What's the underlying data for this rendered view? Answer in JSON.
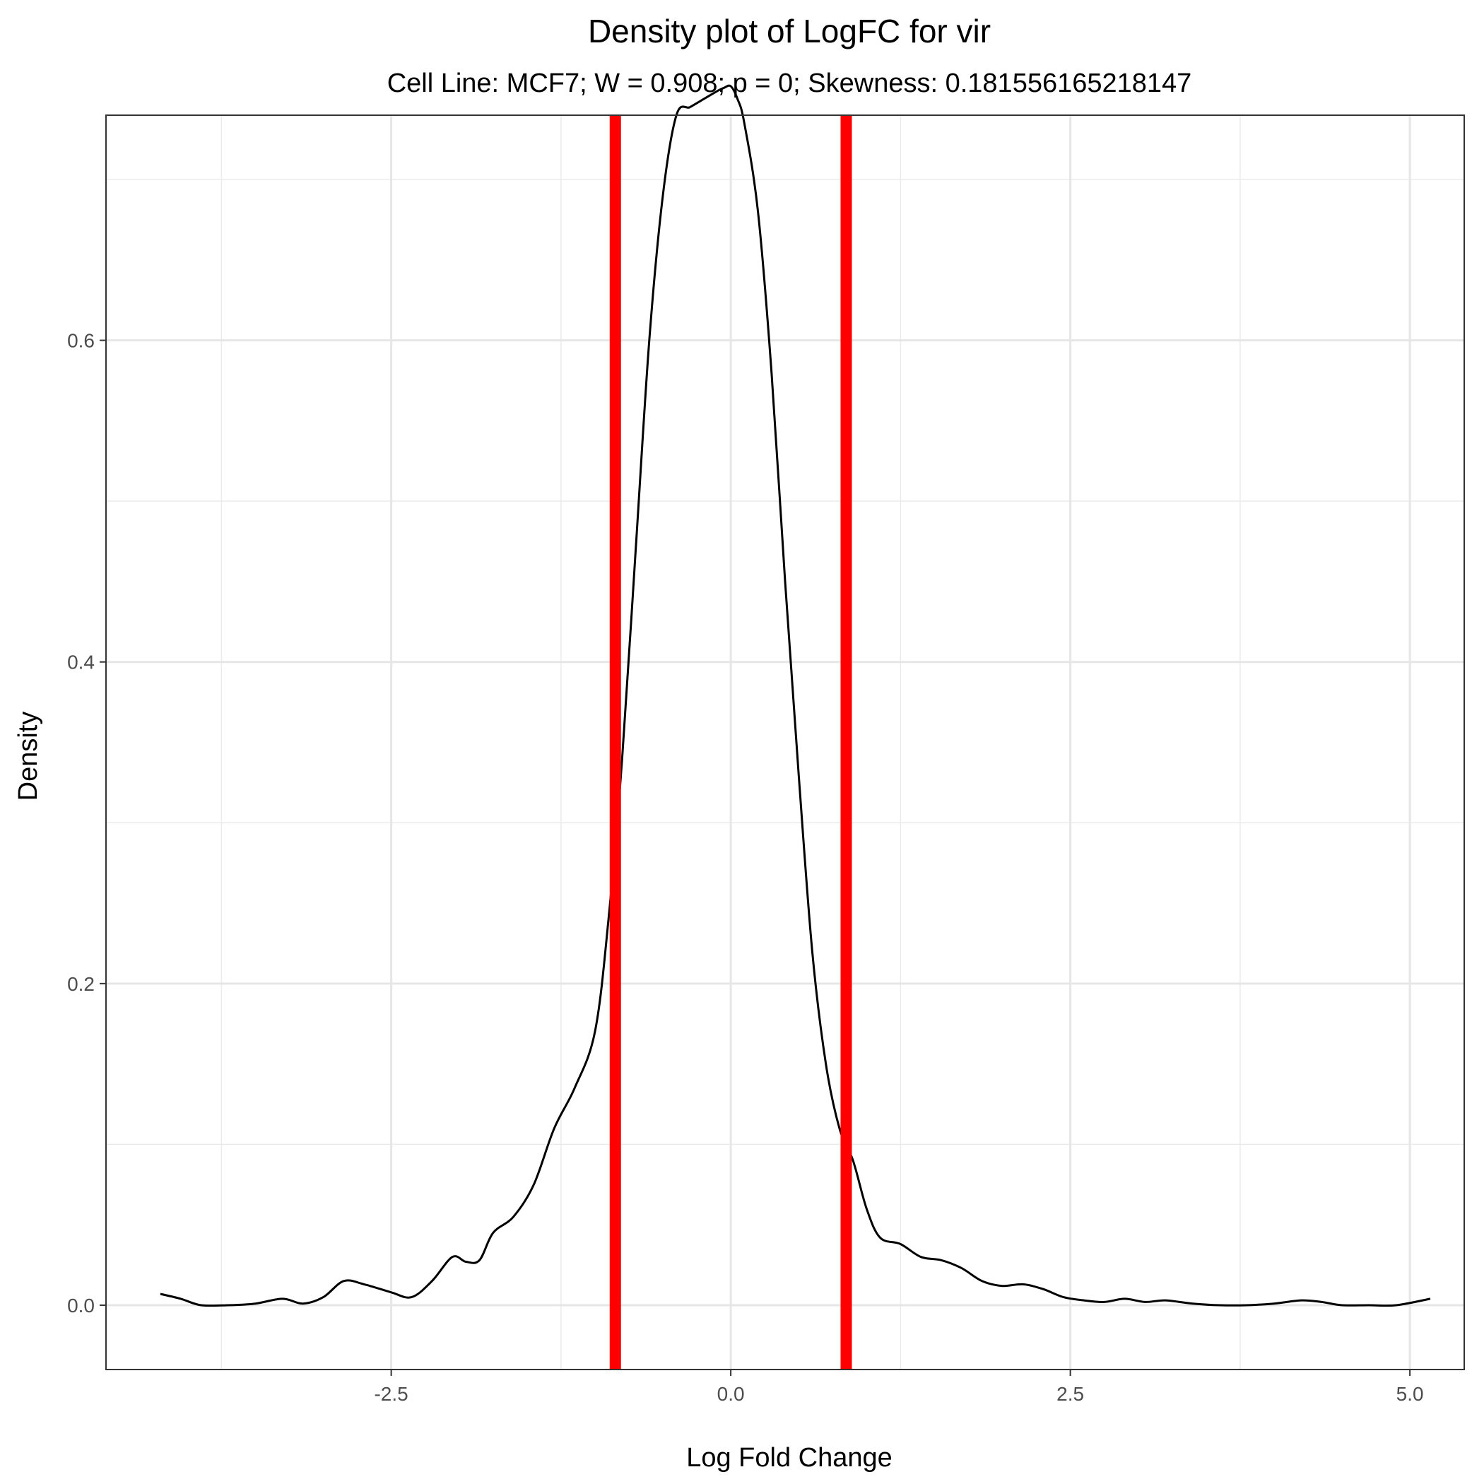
{
  "chart_data": {
    "type": "line",
    "title": "Density plot of LogFC for vir",
    "subtitle": "Cell Line: MCF7; W = 0.908; p = 0; Skewness: 0.181556165218147",
    "xlabel": "Log Fold Change",
    "ylabel": "Density",
    "xlim": [
      -4.6,
      5.4
    ],
    "ylim": [
      -0.04,
      0.74
    ],
    "x_ticks": [
      -2.5,
      0.0,
      2.5,
      5.0
    ],
    "x_tick_labels": [
      "-2.5",
      "0.0",
      "2.5",
      "5.0"
    ],
    "y_ticks": [
      0.0,
      0.2,
      0.4,
      0.6
    ],
    "y_tick_labels": [
      "0.0",
      "0.2",
      "0.4",
      "0.6"
    ],
    "grid": true,
    "series": [
      {
        "color": "#000000",
        "x": [
          -4.2,
          -4.05,
          -3.9,
          -3.7,
          -3.5,
          -3.3,
          -3.15,
          -3.0,
          -2.85,
          -2.7,
          -2.5,
          -2.35,
          -2.2,
          -2.05,
          -1.95,
          -1.85,
          -1.75,
          -1.6,
          -1.45,
          -1.3,
          -1.15,
          -1.0,
          -0.9,
          -0.8,
          -0.7,
          -0.6,
          -0.5,
          -0.4,
          -0.3,
          -0.2,
          -0.1,
          -0.05,
          0.0,
          0.05,
          0.1,
          0.2,
          0.3,
          0.4,
          0.5,
          0.6,
          0.7,
          0.8,
          0.9,
          1.0,
          1.1,
          1.25,
          1.4,
          1.55,
          1.7,
          1.85,
          2.0,
          2.15,
          2.3,
          2.45,
          2.6,
          2.75,
          2.9,
          3.05,
          3.2,
          3.4,
          3.6,
          3.8,
          4.0,
          4.2,
          4.35,
          4.5,
          4.7,
          4.9,
          5.15
        ],
        "y": [
          0.007,
          0.004,
          0.0,
          0.0,
          0.001,
          0.004,
          0.001,
          0.005,
          0.015,
          0.013,
          0.008,
          0.005,
          0.015,
          0.03,
          0.027,
          0.028,
          0.045,
          0.055,
          0.075,
          0.11,
          0.135,
          0.17,
          0.24,
          0.34,
          0.47,
          0.6,
          0.69,
          0.74,
          0.745,
          0.75,
          0.755,
          0.757,
          0.758,
          0.75,
          0.735,
          0.68,
          0.58,
          0.45,
          0.33,
          0.22,
          0.15,
          0.11,
          0.09,
          0.06,
          0.042,
          0.038,
          0.03,
          0.028,
          0.023,
          0.015,
          0.012,
          0.013,
          0.01,
          0.005,
          0.003,
          0.002,
          0.004,
          0.002,
          0.003,
          0.001,
          0.0,
          0.0,
          0.001,
          0.003,
          0.002,
          0.0,
          0.0,
          0.0,
          0.004
        ]
      }
    ],
    "vlines": [
      {
        "x": -0.85,
        "color": "#ff0000"
      },
      {
        "x": 0.85,
        "color": "#ff0000"
      }
    ]
  }
}
